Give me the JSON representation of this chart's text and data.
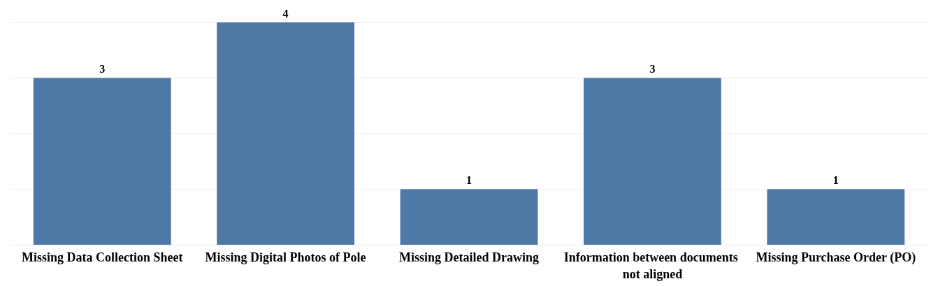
{
  "chart_data": {
    "type": "bar",
    "categories": [
      "Missing Data Collection Sheet",
      "Missing Digital Photos of Pole",
      "Missing Detailed Drawing",
      "Information between documents not aligned",
      "Missing Purchase Order (PO)"
    ],
    "values": [
      3,
      4,
      1,
      3,
      1
    ],
    "color": "#4e79a7",
    "ylim": [
      0,
      4
    ],
    "yticks": [
      {
        "value": 0,
        "label": null
      },
      {
        "value": 1,
        "label": null
      },
      {
        "value": 2,
        "label": null
      },
      {
        "value": 3,
        "label": null
      },
      {
        "value": 4,
        "label": null
      }
    ],
    "grid": "y",
    "tick_labels": "x",
    "data_labels": true
  }
}
